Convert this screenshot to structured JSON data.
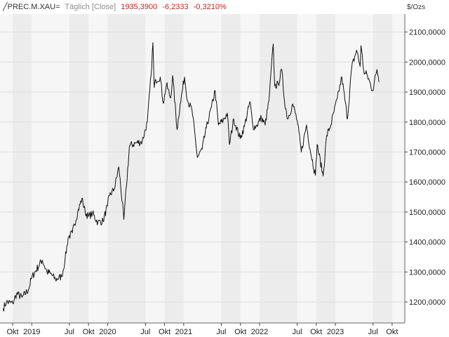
{
  "header": {
    "symbol": "╱PREC.M.XAU=",
    "mode": "Täglich [Close]",
    "last": "1935,3900",
    "change": "-6,2333",
    "change_pct": "-0,3210%"
  },
  "colors": {
    "line": "#111111",
    "negative": "#cc2222",
    "band_light": "#f6f6f6",
    "band_dark": "#ececec",
    "grid": "#dcdcdc"
  },
  "chart_data": {
    "type": "line",
    "unit": "$/Ozs",
    "ylim": [
      1130,
      2160
    ],
    "xlim": [
      "2018-08-01",
      "2023-12-01"
    ],
    "grid": true,
    "yticks": [
      {
        "value": 1200,
        "label": "1200,0000"
      },
      {
        "value": 1300,
        "label": "1300,0000"
      },
      {
        "value": 1400,
        "label": "1400,0000"
      },
      {
        "value": 1500,
        "label": "1500,0000"
      },
      {
        "value": 1600,
        "label": "1600,0000"
      },
      {
        "value": 1700,
        "label": "1700,0000"
      },
      {
        "value": 1800,
        "label": "1800,0000"
      },
      {
        "value": 1900,
        "label": "1900,0000"
      },
      {
        "value": 2000,
        "label": "2000,0000"
      },
      {
        "value": 2100,
        "label": "2100,0000"
      }
    ],
    "xticks": [
      {
        "date": "2018-10-01",
        "label": "Okt"
      },
      {
        "date": "2019-01-01",
        "label": "2019"
      },
      {
        "date": "2019-07-01",
        "label": "Jul"
      },
      {
        "date": "2019-10-01",
        "label": "Okt"
      },
      {
        "date": "2020-01-01",
        "label": "2020"
      },
      {
        "date": "2020-07-01",
        "label": "Jul"
      },
      {
        "date": "2020-10-01",
        "label": "Okt"
      },
      {
        "date": "2021-01-01",
        "label": "2021"
      },
      {
        "date": "2021-07-01",
        "label": "Jul"
      },
      {
        "date": "2021-10-01",
        "label": "Okt"
      },
      {
        "date": "2022-01-01",
        "label": "2022"
      },
      {
        "date": "2022-07-01",
        "label": "Jul"
      },
      {
        "date": "2022-10-01",
        "label": "Okt"
      },
      {
        "date": "2023-01-01",
        "label": "2023"
      },
      {
        "date": "2023-07-01",
        "label": "Jul"
      },
      {
        "date": "2023-10-01",
        "label": "Okt"
      }
    ],
    "series": [
      {
        "points": [
          [
            "2018-08-16",
            1178
          ],
          [
            "2018-09-01",
            1200
          ],
          [
            "2018-10-01",
            1195
          ],
          [
            "2018-10-20",
            1228
          ],
          [
            "2018-11-15",
            1215
          ],
          [
            "2018-12-15",
            1240
          ],
          [
            "2019-01-01",
            1282
          ],
          [
            "2019-02-20",
            1340
          ],
          [
            "2019-03-15",
            1300
          ],
          [
            "2019-04-01",
            1295
          ],
          [
            "2019-04-25",
            1275
          ],
          [
            "2019-05-25",
            1285
          ],
          [
            "2019-06-10",
            1340
          ],
          [
            "2019-06-25",
            1415
          ],
          [
            "2019-07-15",
            1430
          ],
          [
            "2019-08-10",
            1500
          ],
          [
            "2019-08-30",
            1545
          ],
          [
            "2019-09-15",
            1500
          ],
          [
            "2019-10-01",
            1485
          ],
          [
            "2019-10-20",
            1495
          ],
          [
            "2019-11-15",
            1465
          ],
          [
            "2019-12-10",
            1470
          ],
          [
            "2019-12-31",
            1520
          ],
          [
            "2020-01-10",
            1555
          ],
          [
            "2020-02-01",
            1575
          ],
          [
            "2020-02-24",
            1650
          ],
          [
            "2020-03-19",
            1475
          ],
          [
            "2020-04-01",
            1590
          ],
          [
            "2020-04-15",
            1720
          ],
          [
            "2020-05-15",
            1730
          ],
          [
            "2020-06-15",
            1735
          ],
          [
            "2020-07-10",
            1800
          ],
          [
            "2020-07-28",
            1955
          ],
          [
            "2020-08-06",
            2065
          ],
          [
            "2020-08-12",
            1915
          ],
          [
            "2020-08-20",
            1940
          ],
          [
            "2020-09-10",
            1950
          ],
          [
            "2020-09-25",
            1862
          ],
          [
            "2020-10-10",
            1925
          ],
          [
            "2020-10-30",
            1880
          ],
          [
            "2020-11-09",
            1955
          ],
          [
            "2020-11-30",
            1775
          ],
          [
            "2020-12-15",
            1860
          ],
          [
            "2021-01-05",
            1950
          ],
          [
            "2021-01-20",
            1870
          ],
          [
            "2021-02-10",
            1840
          ],
          [
            "2021-03-08",
            1682
          ],
          [
            "2021-03-31",
            1710
          ],
          [
            "2021-04-20",
            1780
          ],
          [
            "2021-05-15",
            1850
          ],
          [
            "2021-06-01",
            1905
          ],
          [
            "2021-06-17",
            1790
          ],
          [
            "2021-07-10",
            1805
          ],
          [
            "2021-07-30",
            1830
          ],
          [
            "2021-08-09",
            1725
          ],
          [
            "2021-08-30",
            1810
          ],
          [
            "2021-09-30",
            1745
          ],
          [
            "2021-10-20",
            1785
          ],
          [
            "2021-11-16",
            1868
          ],
          [
            "2021-11-30",
            1785
          ],
          [
            "2021-12-15",
            1785
          ],
          [
            "2022-01-10",
            1815
          ],
          [
            "2022-01-28",
            1790
          ],
          [
            "2022-02-15",
            1870
          ],
          [
            "2022-03-08",
            2060
          ],
          [
            "2022-03-15",
            1920
          ],
          [
            "2022-04-01",
            1925
          ],
          [
            "2022-04-18",
            1975
          ],
          [
            "2022-05-01",
            1870
          ],
          [
            "2022-05-16",
            1810
          ],
          [
            "2022-06-10",
            1860
          ],
          [
            "2022-07-01",
            1805
          ],
          [
            "2022-07-21",
            1700
          ],
          [
            "2022-08-15",
            1790
          ],
          [
            "2022-09-01",
            1710
          ],
          [
            "2022-09-27",
            1622
          ],
          [
            "2022-10-05",
            1725
          ],
          [
            "2022-11-03",
            1620
          ],
          [
            "2022-11-20",
            1755
          ],
          [
            "2022-12-10",
            1790
          ],
          [
            "2023-01-10",
            1878
          ],
          [
            "2023-02-01",
            1950
          ],
          [
            "2023-02-28",
            1810
          ],
          [
            "2023-03-20",
            1980
          ],
          [
            "2023-04-13",
            2040
          ],
          [
            "2023-04-30",
            1985
          ],
          [
            "2023-05-04",
            2055
          ],
          [
            "2023-05-20",
            1960
          ],
          [
            "2023-06-01",
            1960
          ],
          [
            "2023-06-29",
            1905
          ],
          [
            "2023-07-20",
            1975
          ],
          [
            "2023-08-01",
            1935
          ]
        ]
      }
    ]
  }
}
